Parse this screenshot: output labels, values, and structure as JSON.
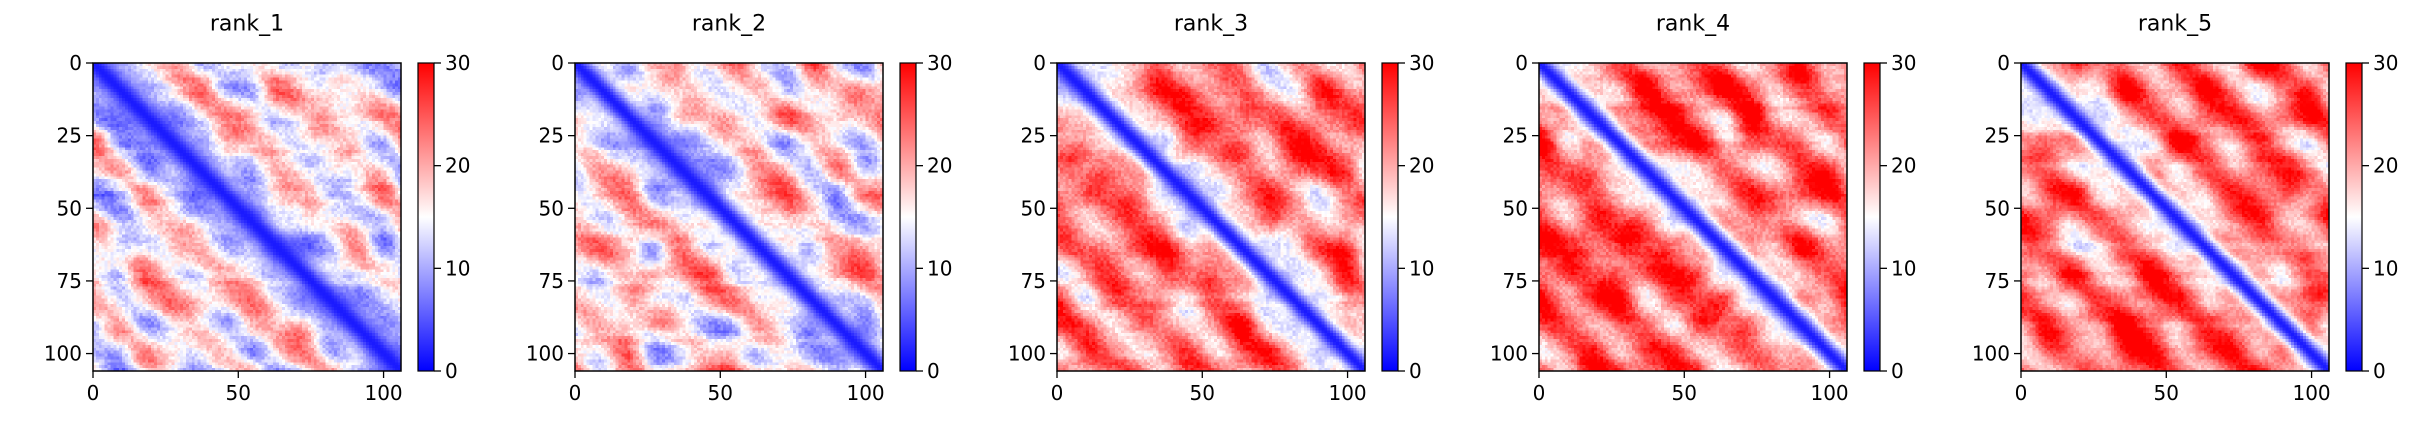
{
  "chart_data": {
    "type": "heatmap",
    "colormap": {
      "name": "bwr",
      "low": "#0000ff",
      "mid": "#ffffff",
      "high": "#ff0000"
    },
    "color_range": [
      0,
      30
    ],
    "colorbar_ticks": [
      "0",
      "10",
      "20",
      "30"
    ],
    "x_range": [
      0,
      106
    ],
    "y_range": [
      106,
      0
    ],
    "y_inverted": true,
    "x_ticks": [
      "0",
      "50",
      "100"
    ],
    "y_ticks": [
      "0",
      "25",
      "50",
      "75",
      "100"
    ],
    "grid": false,
    "panels": [
      {
        "title": "rank_1",
        "offdiag_mean": 16,
        "diag_width": 6,
        "mottle": 3.5
      },
      {
        "title": "rank_2",
        "offdiag_mean": 17,
        "diag_width": 5.5,
        "mottle": 3.5
      },
      {
        "title": "rank_3",
        "offdiag_mean": 22,
        "diag_width": 5,
        "mottle": 3.5
      },
      {
        "title": "rank_4",
        "offdiag_mean": 24,
        "diag_width": 5,
        "mottle": 3.5
      },
      {
        "title": "rank_5",
        "offdiag_mean": 23,
        "diag_width": 4.5,
        "mottle": 3
      }
    ]
  }
}
